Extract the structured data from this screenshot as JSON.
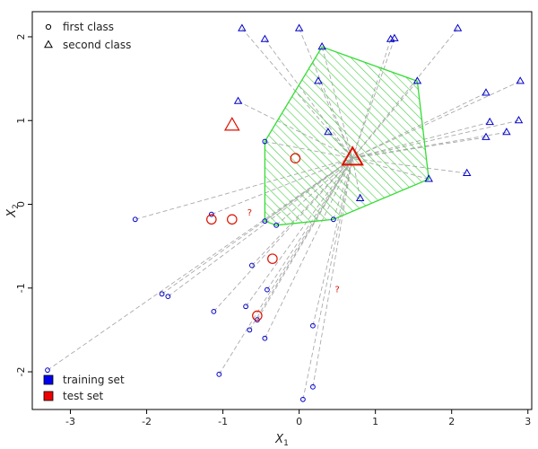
{
  "chart_data": {
    "type": "scatter",
    "title": "",
    "xlabel": "X",
    "xlabel_sub": "1",
    "ylabel": "X",
    "ylabel_sub": "2",
    "xlim": [
      -3.5,
      3.05
    ],
    "ylim": [
      -2.45,
      2.3
    ],
    "xticks": [
      -3,
      -2,
      -1,
      0,
      1,
      2,
      3
    ],
    "yticks": [
      -2,
      -1,
      0,
      1,
      2
    ],
    "grid": false,
    "legend_top": {
      "placement": "top-left",
      "entries": [
        {
          "label": "first class",
          "shape": "circle"
        },
        {
          "label": "second class",
          "shape": "triangle"
        }
      ]
    },
    "legend_bottom": {
      "placement": "bottom-left",
      "entries": [
        {
          "label": "training set",
          "color": "#0000ee"
        },
        {
          "label": "test set",
          "color": "#ee0000"
        }
      ]
    },
    "colors": {
      "training": "#0000cc",
      "test": "#dd1100",
      "hull_fill": "#44cc44",
      "hull_edge": "#33dd33",
      "links": "#aaaaaa"
    },
    "training_first_class": [
      [
        -2.15,
        -0.18
      ],
      [
        -1.15,
        -0.12
      ],
      [
        -0.45,
        0.75
      ],
      [
        -0.45,
        -0.2
      ],
      [
        -0.3,
        -0.25
      ],
      [
        0.45,
        -0.18
      ],
      [
        -0.62,
        -0.73
      ],
      [
        -0.42,
        -1.02
      ],
      [
        -1.8,
        -1.07
      ],
      [
        -1.72,
        -1.1
      ],
      [
        -1.12,
        -1.28
      ],
      [
        -0.7,
        -1.22
      ],
      [
        -0.55,
        -1.38
      ],
      [
        -0.65,
        -1.5
      ],
      [
        -0.45,
        -1.6
      ],
      [
        0.18,
        -1.45
      ],
      [
        -3.3,
        -1.98
      ],
      [
        -1.05,
        -2.03
      ],
      [
        0.18,
        -2.18
      ],
      [
        0.05,
        -2.33
      ]
    ],
    "training_second_class": [
      [
        -0.75,
        2.1
      ],
      [
        -0.45,
        1.97
      ],
      [
        0.0,
        2.1
      ],
      [
        0.3,
        1.88
      ],
      [
        1.2,
        1.97
      ],
      [
        1.25,
        1.98
      ],
      [
        2.08,
        2.1
      ],
      [
        0.25,
        1.47
      ],
      [
        1.55,
        1.47
      ],
      [
        2.45,
        1.33
      ],
      [
        2.9,
        1.47
      ],
      [
        -0.8,
        1.23
      ],
      [
        0.38,
        0.86
      ],
      [
        2.5,
        0.98
      ],
      [
        2.88,
        1.0
      ],
      [
        2.45,
        0.8
      ],
      [
        2.72,
        0.86
      ],
      [
        2.2,
        0.37
      ],
      [
        1.7,
        0.3
      ],
      [
        0.8,
        0.07
      ]
    ],
    "test_first_class": [
      [
        -0.05,
        0.55
      ],
      [
        -1.15,
        -0.18
      ],
      [
        -0.88,
        -0.18
      ],
      [
        -0.35,
        -0.65
      ],
      [
        -0.55,
        -1.33
      ]
    ],
    "test_second_class": [
      [
        -0.88,
        0.94
      ],
      [
        0.7,
        0.55
      ]
    ],
    "test_unknown": [
      [
        -0.65,
        -0.1
      ],
      [
        0.5,
        -1.02
      ]
    ],
    "hull": [
      [
        0.3,
        1.88
      ],
      [
        1.55,
        1.47
      ],
      [
        1.7,
        0.3
      ],
      [
        0.45,
        -0.18
      ],
      [
        -0.3,
        -0.25
      ],
      [
        -0.45,
        -0.2
      ],
      [
        -0.45,
        0.75
      ]
    ],
    "link_target": [
      0.7,
      0.55
    ],
    "unknown_label": "?"
  }
}
